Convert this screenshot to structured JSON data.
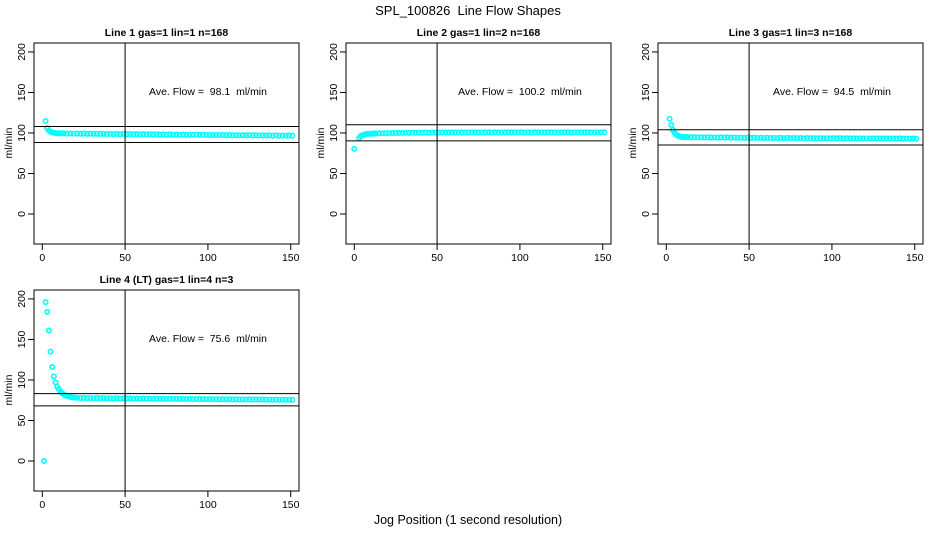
{
  "figure": {
    "main_title": "SPL_100826  Line Flow Shapes",
    "x_axis_label": "Jog Position (1 second resolution)",
    "background_color": "#ffffff",
    "marker_color": "#00ffff",
    "axis_color": "#000000"
  },
  "chart_data": [
    {
      "type": "scatter",
      "title": "Line 1 gas=1 lin=1 n=168",
      "annotation": "Ave. Flow =  98.1  ml/min",
      "ave_flow_ml_min": 98.1,
      "ylabel": "ml/min",
      "xlim": [
        -5,
        155
      ],
      "ylim": [
        -37,
        211
      ],
      "x_ticks": [
        0,
        50,
        100,
        150
      ],
      "y_ticks": [
        0,
        50,
        100,
        150,
        200
      ],
      "vline_x": 50,
      "hlines": [
        107.9,
        88.3
      ],
      "grid": false,
      "legend": "none",
      "points": [
        [
          2,
          114.8
        ],
        [
          3,
          106
        ],
        [
          4,
          103
        ],
        [
          5,
          101.4
        ],
        [
          6,
          100.6
        ],
        [
          7,
          100.2
        ],
        [
          8,
          99.9
        ],
        [
          9,
          99.6
        ],
        [
          10,
          99.8
        ],
        [
          11,
          99.4
        ],
        [
          12,
          99.7
        ],
        [
          13,
          99.6
        ],
        [
          15,
          99.2
        ],
        [
          17,
          99.5
        ],
        [
          19,
          99.1
        ],
        [
          21,
          99.4
        ],
        [
          23,
          99
        ],
        [
          25,
          99.3
        ],
        [
          27,
          98.9
        ],
        [
          29,
          99.2
        ],
        [
          31,
          98.8
        ],
        [
          33,
          99.1
        ],
        [
          35,
          98.8
        ],
        [
          37,
          99
        ],
        [
          39,
          98.7
        ],
        [
          41,
          98.9
        ],
        [
          43,
          98.6
        ],
        [
          45,
          98.9
        ],
        [
          47,
          98.5
        ],
        [
          49,
          98.8
        ],
        [
          51,
          98.4
        ],
        [
          53,
          98.7
        ],
        [
          55,
          98.4
        ],
        [
          57,
          98.6
        ],
        [
          59,
          98.3
        ],
        [
          61,
          98.5
        ],
        [
          63,
          98.2
        ],
        [
          65,
          98.5
        ],
        [
          67,
          98.1
        ],
        [
          69,
          98.4
        ],
        [
          71,
          98
        ],
        [
          73,
          98.3
        ],
        [
          75,
          98
        ],
        [
          77,
          98.2
        ],
        [
          79,
          97.9
        ],
        [
          81,
          98.1
        ],
        [
          83,
          97.8
        ],
        [
          85,
          98.1
        ],
        [
          87,
          97.7
        ],
        [
          89,
          98
        ],
        [
          91,
          97.6
        ],
        [
          93,
          97.9
        ],
        [
          95,
          97.6
        ],
        [
          97,
          97.8
        ],
        [
          99,
          97.5
        ],
        [
          101,
          97.7
        ],
        [
          103,
          97.4
        ],
        [
          105,
          97.7
        ],
        [
          107,
          97.3
        ],
        [
          109,
          97.6
        ],
        [
          111,
          97.2
        ],
        [
          113,
          97.5
        ],
        [
          115,
          97.2
        ],
        [
          117,
          97.4
        ],
        [
          119,
          97.1
        ],
        [
          121,
          97.3
        ],
        [
          123,
          97
        ],
        [
          125,
          97.3
        ],
        [
          127,
          96.9
        ],
        [
          129,
          97.2
        ],
        [
          131,
          96.9
        ],
        [
          133,
          97.1
        ],
        [
          135,
          96.8
        ],
        [
          137,
          97
        ],
        [
          139,
          96.7
        ],
        [
          141,
          97
        ],
        [
          143,
          96.6
        ],
        [
          145,
          96.9
        ],
        [
          147,
          96.6
        ],
        [
          149,
          96.8
        ],
        [
          151,
          96.5
        ]
      ]
    },
    {
      "type": "scatter",
      "title": "Line 2 gas=1 lin=2 n=168",
      "annotation": "Ave. Flow =  100.2  ml/min",
      "ave_flow_ml_min": 100.2,
      "ylabel": "ml/min",
      "xlim": [
        -5,
        155
      ],
      "ylim": [
        -37,
        211
      ],
      "x_ticks": [
        0,
        50,
        100,
        150
      ],
      "y_ticks": [
        0,
        50,
        100,
        150,
        200
      ],
      "vline_x": 50,
      "hlines": [
        110.2,
        90.2
      ],
      "grid": false,
      "legend": "none",
      "points": [
        [
          0,
          80.3
        ],
        [
          3,
          94
        ],
        [
          4,
          96.2
        ],
        [
          5,
          97.3
        ],
        [
          6,
          98
        ],
        [
          7,
          98.5
        ],
        [
          8,
          98.8
        ],
        [
          9,
          99.1
        ],
        [
          10,
          99
        ],
        [
          11,
          99.3
        ],
        [
          12,
          99.2
        ],
        [
          13,
          99.4
        ],
        [
          15,
          99.6
        ],
        [
          17,
          99.5
        ],
        [
          19,
          99.8
        ],
        [
          21,
          99.7
        ],
        [
          23,
          100
        ],
        [
          25,
          99.9
        ],
        [
          27,
          100.1
        ],
        [
          29,
          100
        ],
        [
          31,
          100.2
        ],
        [
          33,
          100.1
        ],
        [
          35,
          100.3
        ],
        [
          37,
          100.2
        ],
        [
          39,
          100.4
        ],
        [
          41,
          100.3
        ],
        [
          43,
          100.5
        ],
        [
          45,
          100.3
        ],
        [
          47,
          100.6
        ],
        [
          49,
          100.4
        ],
        [
          51,
          100.6
        ],
        [
          53,
          100.5
        ],
        [
          55,
          100.7
        ],
        [
          57,
          100.5
        ],
        [
          59,
          100.7
        ],
        [
          61,
          100.6
        ],
        [
          63,
          100.8
        ],
        [
          65,
          100.6
        ],
        [
          67,
          100.8
        ],
        [
          69,
          100.6
        ],
        [
          71,
          100.8
        ],
        [
          73,
          100.7
        ],
        [
          75,
          100.5
        ],
        [
          77,
          100.8
        ],
        [
          79,
          100.6
        ],
        [
          81,
          100.8
        ],
        [
          83,
          100.6
        ],
        [
          85,
          100.9
        ],
        [
          87,
          100.6
        ],
        [
          89,
          100.8
        ],
        [
          91,
          100.7
        ],
        [
          93,
          100.9
        ],
        [
          95,
          100.6
        ],
        [
          97,
          100.8
        ],
        [
          99,
          100.7
        ],
        [
          101,
          100.9
        ],
        [
          103,
          100.6
        ],
        [
          105,
          100.8
        ],
        [
          107,
          100.6
        ],
        [
          109,
          100.9
        ],
        [
          111,
          100.7
        ],
        [
          113,
          100.8
        ],
        [
          115,
          100.6
        ],
        [
          117,
          100.9
        ],
        [
          119,
          100.7
        ],
        [
          121,
          100.8
        ],
        [
          123,
          100.6
        ],
        [
          125,
          100.8
        ],
        [
          127,
          100.7
        ],
        [
          129,
          100.9
        ],
        [
          131,
          100.6
        ],
        [
          133,
          100.8
        ],
        [
          135,
          100.7
        ],
        [
          137,
          100.8
        ],
        [
          139,
          100.6
        ],
        [
          141,
          100.9
        ],
        [
          143,
          100.7
        ],
        [
          145,
          100.8
        ],
        [
          147,
          100.6
        ],
        [
          149,
          100.8
        ],
        [
          151,
          100.7
        ]
      ]
    },
    {
      "type": "scatter",
      "title": "Line 3 gas=1 lin=3 n=168",
      "annotation": "Ave. Flow =  94.5  ml/min",
      "ave_flow_ml_min": 94.5,
      "ylabel": "ml/min",
      "xlim": [
        -5,
        155
      ],
      "ylim": [
        -37,
        211
      ],
      "x_ticks": [
        0,
        50,
        100,
        150
      ],
      "y_ticks": [
        0,
        50,
        100,
        150,
        200
      ],
      "vline_x": 50,
      "hlines": [
        104.0,
        85.1
      ],
      "grid": false,
      "legend": "none",
      "points": [
        [
          2,
          117.5
        ],
        [
          3,
          110
        ],
        [
          4,
          103.8
        ],
        [
          5,
          100.2
        ],
        [
          6,
          98
        ],
        [
          7,
          96.6
        ],
        [
          8,
          95.8
        ],
        [
          9,
          95.3
        ],
        [
          10,
          95
        ],
        [
          11,
          94.8
        ],
        [
          12,
          95.1
        ],
        [
          13,
          94.9
        ],
        [
          15,
          94.6
        ],
        [
          17,
          94.8
        ],
        [
          19,
          94.5
        ],
        [
          21,
          94.7
        ],
        [
          23,
          94.4
        ],
        [
          25,
          94.7
        ],
        [
          27,
          94.3
        ],
        [
          29,
          94.6
        ],
        [
          31,
          94.3
        ],
        [
          33,
          94.5
        ],
        [
          35,
          94.2
        ],
        [
          37,
          94.5
        ],
        [
          39,
          94.1
        ],
        [
          41,
          94.4
        ],
        [
          43,
          94.1
        ],
        [
          45,
          94.3
        ],
        [
          47,
          94
        ],
        [
          49,
          94.3
        ],
        [
          51,
          93.9
        ],
        [
          53,
          94.2
        ],
        [
          55,
          93.9
        ],
        [
          57,
          94.1
        ],
        [
          59,
          93.8
        ],
        [
          61,
          94.1
        ],
        [
          63,
          93.8
        ],
        [
          65,
          94
        ],
        [
          67,
          93.7
        ],
        [
          69,
          94
        ],
        [
          71,
          93.6
        ],
        [
          73,
          93.9
        ],
        [
          75,
          93.6
        ],
        [
          77,
          93.8
        ],
        [
          79,
          93.6
        ],
        [
          81,
          93.8
        ],
        [
          83,
          93.5
        ],
        [
          85,
          93.8
        ],
        [
          87,
          93.5
        ],
        [
          89,
          93.7
        ],
        [
          91,
          93.4
        ],
        [
          93,
          93.7
        ],
        [
          95,
          93.4
        ],
        [
          97,
          93.6
        ],
        [
          99,
          93.4
        ],
        [
          101,
          93.6
        ],
        [
          103,
          93.3
        ],
        [
          105,
          93.6
        ],
        [
          107,
          93.3
        ],
        [
          109,
          93.5
        ],
        [
          111,
          93.3
        ],
        [
          113,
          93.5
        ],
        [
          115,
          93.2
        ],
        [
          117,
          93.5
        ],
        [
          119,
          93.2
        ],
        [
          121,
          93.4
        ],
        [
          123,
          93.2
        ],
        [
          125,
          93.4
        ],
        [
          127,
          93.1
        ],
        [
          129,
          93.4
        ],
        [
          131,
          93.1
        ],
        [
          133,
          93.3
        ],
        [
          135,
          93.1
        ],
        [
          137,
          93.3
        ],
        [
          139,
          93
        ],
        [
          141,
          93.3
        ],
        [
          143,
          93
        ],
        [
          145,
          93.2
        ],
        [
          147,
          93
        ],
        [
          149,
          93.2
        ],
        [
          151,
          93
        ]
      ]
    },
    {
      "type": "scatter",
      "title": "Line 4 (LT) gas=1 lin=4 n=3",
      "annotation": "Ave. Flow =  75.6  ml/min",
      "ave_flow_ml_min": 75.6,
      "ylabel": "ml/min",
      "xlim": [
        -5,
        155
      ],
      "ylim": [
        -37,
        211
      ],
      "x_ticks": [
        0,
        50,
        100,
        150
      ],
      "y_ticks": [
        0,
        50,
        100,
        150,
        200
      ],
      "vline_x": 50,
      "hlines": [
        83.2,
        68.0
      ],
      "grid": false,
      "legend": "none",
      "points": [
        [
          1,
          0
        ],
        [
          2,
          196
        ],
        [
          3,
          184
        ],
        [
          4,
          161
        ],
        [
          5,
          135
        ],
        [
          6,
          116
        ],
        [
          7,
          104.5
        ],
        [
          8,
          97
        ],
        [
          9,
          92
        ],
        [
          10,
          88.5
        ],
        [
          11,
          85.5
        ],
        [
          12,
          83.5
        ],
        [
          13,
          82
        ],
        [
          14,
          81
        ],
        [
          15,
          80.2
        ],
        [
          16,
          79.6
        ],
        [
          17,
          79.1
        ],
        [
          18,
          78.7
        ],
        [
          19,
          78.4
        ],
        [
          20,
          78.2
        ],
        [
          21,
          78
        ],
        [
          23,
          77.8
        ],
        [
          25,
          77.9
        ],
        [
          27,
          77.6
        ],
        [
          29,
          77.8
        ],
        [
          31,
          77.5
        ],
        [
          33,
          77.7
        ],
        [
          35,
          77.4
        ],
        [
          37,
          77.6
        ],
        [
          39,
          77.3
        ],
        [
          41,
          77.5
        ],
        [
          43,
          77.2
        ],
        [
          45,
          77.4
        ],
        [
          47,
          77.2
        ],
        [
          49,
          77.3
        ],
        [
          51,
          77.1
        ],
        [
          53,
          77.3
        ],
        [
          55,
          77
        ],
        [
          57,
          77.2
        ],
        [
          59,
          76.9
        ],
        [
          61,
          77.1
        ],
        [
          63,
          76.9
        ],
        [
          65,
          77
        ],
        [
          67,
          76.8
        ],
        [
          69,
          77
        ],
        [
          71,
          76.7
        ],
        [
          73,
          76.9
        ],
        [
          75,
          76.7
        ],
        [
          77,
          76.8
        ],
        [
          79,
          76.6
        ],
        [
          81,
          76.8
        ],
        [
          83,
          76.5
        ],
        [
          85,
          76.7
        ],
        [
          87,
          76.5
        ],
        [
          89,
          76.6
        ],
        [
          91,
          76.4
        ],
        [
          93,
          76.6
        ],
        [
          95,
          76.3
        ],
        [
          97,
          76.5
        ],
        [
          99,
          76.3
        ],
        [
          101,
          76.4
        ],
        [
          103,
          76.2
        ],
        [
          105,
          76.4
        ],
        [
          107,
          76.1
        ],
        [
          109,
          76.3
        ],
        [
          111,
          76.1
        ],
        [
          113,
          76.2
        ],
        [
          115,
          76
        ],
        [
          117,
          76.2
        ],
        [
          119,
          75.9
        ],
        [
          121,
          76.1
        ],
        [
          123,
          75.9
        ],
        [
          125,
          76
        ],
        [
          127,
          75.8
        ],
        [
          129,
          76
        ],
        [
          131,
          75.7
        ],
        [
          133,
          75.9
        ],
        [
          135,
          75.7
        ],
        [
          137,
          75.8
        ],
        [
          139,
          75.6
        ],
        [
          141,
          75.8
        ],
        [
          143,
          75.5
        ],
        [
          145,
          75.7
        ],
        [
          147,
          75.5
        ],
        [
          149,
          75.6
        ],
        [
          151,
          75.5
        ]
      ]
    }
  ]
}
